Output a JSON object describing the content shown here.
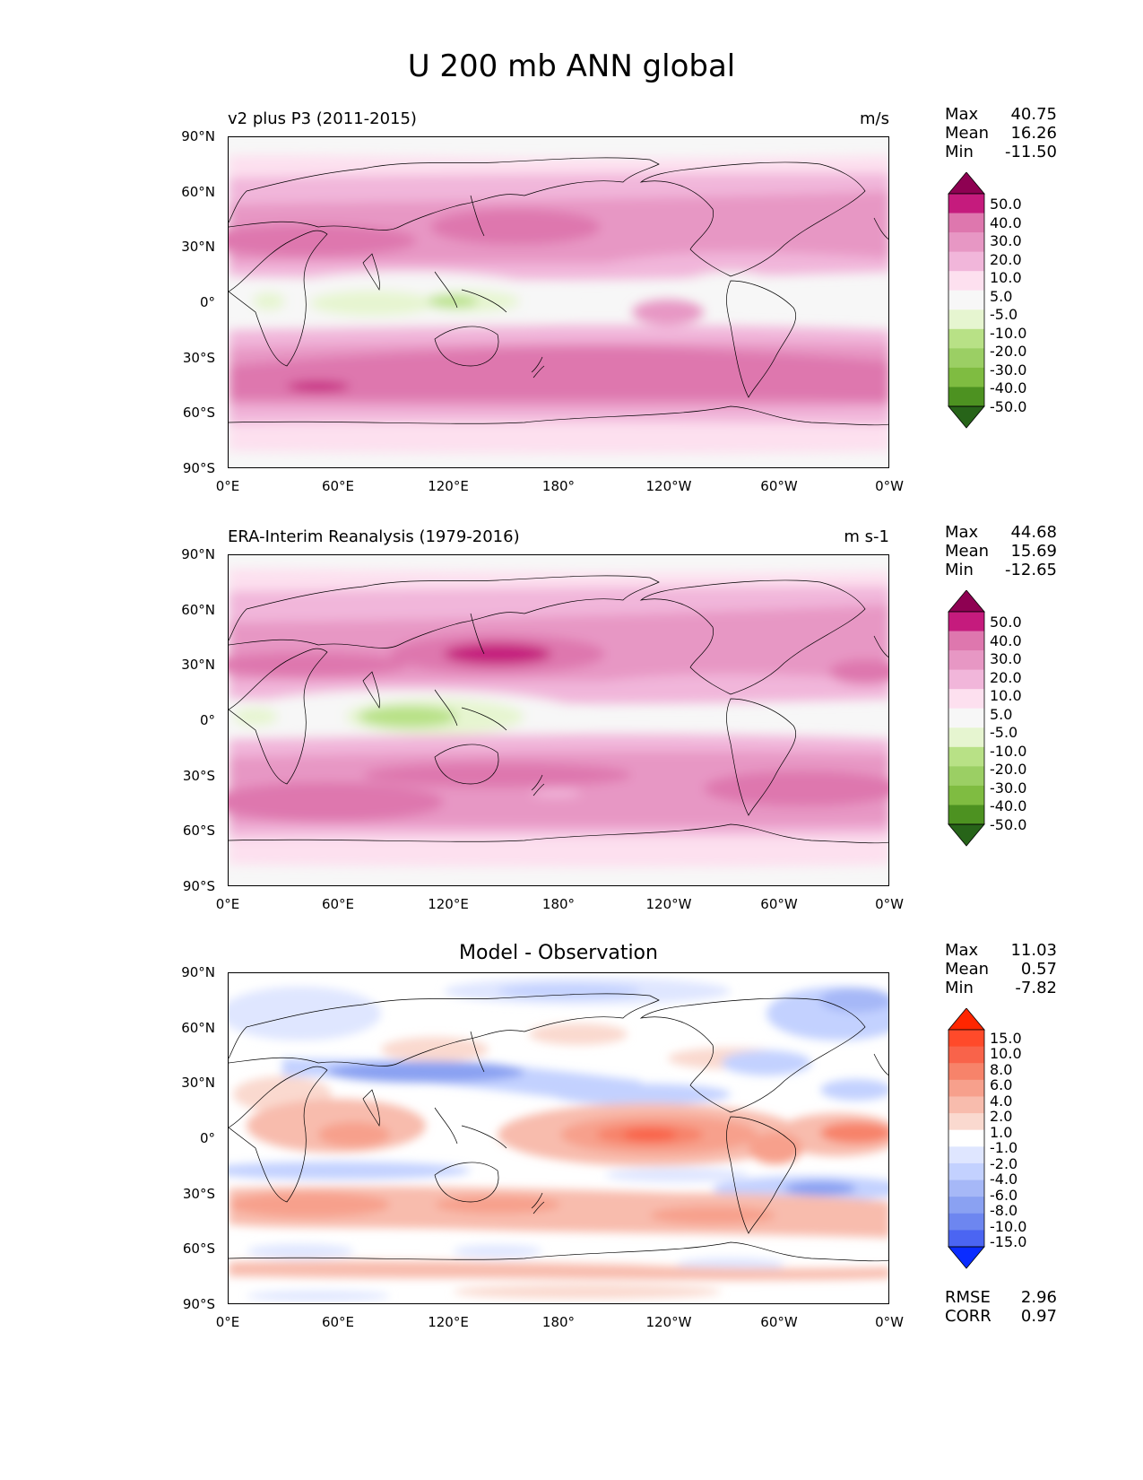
{
  "figure": {
    "title": "U 200 mb ANN global"
  },
  "axes": {
    "lat_ticks": [
      "90°N",
      "60°N",
      "30°N",
      "0°",
      "30°S",
      "60°S",
      "90°S"
    ],
    "lon_ticks": [
      "0°E",
      "60°E",
      "120°E",
      "180°",
      "120°W",
      "60°W",
      "0°W"
    ]
  },
  "panels": [
    {
      "id": "test",
      "left_title": "v2 plus P3 (2011-2015)",
      "right_title": "m/s",
      "center_title": "",
      "stats": [
        {
          "label": "Max",
          "value": "40.75"
        },
        {
          "label": "Mean",
          "value": "16.26"
        },
        {
          "label": "Min",
          "value": "-11.50"
        }
      ],
      "colorbar": {
        "levels": [
          "50.0",
          "40.0",
          "30.0",
          "20.0",
          "10.0",
          "5.0",
          "-5.0",
          "-10.0",
          "-20.0",
          "-30.0",
          "-40.0",
          "-50.0"
        ],
        "colors": [
          "#8e0152",
          "#c51b7d",
          "#de77ae",
          "#e797c4",
          "#f1b6da",
          "#fde0ef",
          "#f7f7f7",
          "#e6f5d0",
          "#b8e186",
          "#9bcf64",
          "#7fbc41",
          "#4d9221",
          "#276419"
        ]
      }
    },
    {
      "id": "reference",
      "left_title": "ERA-Interim Reanalysis (1979-2016)",
      "right_title": "m s-1",
      "center_title": "",
      "stats": [
        {
          "label": "Max",
          "value": "44.68"
        },
        {
          "label": "Mean",
          "value": "15.69"
        },
        {
          "label": "Min",
          "value": "-12.65"
        }
      ],
      "colorbar": {
        "levels": [
          "50.0",
          "40.0",
          "30.0",
          "20.0",
          "10.0",
          "5.0",
          "-5.0",
          "-10.0",
          "-20.0",
          "-30.0",
          "-40.0",
          "-50.0"
        ],
        "colors": [
          "#8e0152",
          "#c51b7d",
          "#de77ae",
          "#e797c4",
          "#f1b6da",
          "#fde0ef",
          "#f7f7f7",
          "#e6f5d0",
          "#b8e186",
          "#9bcf64",
          "#7fbc41",
          "#4d9221",
          "#276419"
        ]
      }
    },
    {
      "id": "difference",
      "left_title": "",
      "right_title": "",
      "center_title": "Model - Observation",
      "stats": [
        {
          "label": "Max",
          "value": "11.03"
        },
        {
          "label": "Mean",
          "value": "0.57"
        },
        {
          "label": "Min",
          "value": "-7.82"
        }
      ],
      "extra_stats": [
        {
          "label": "RMSE",
          "value": "2.96"
        },
        {
          "label": "CORR",
          "value": "0.97"
        }
      ],
      "colorbar": {
        "levels": [
          "15.0",
          "10.0",
          "8.0",
          "6.0",
          "4.0",
          "2.0",
          "1.0",
          "-1.0",
          "-2.0",
          "-4.0",
          "-6.0",
          "-8.0",
          "-10.0",
          "-15.0"
        ],
        "colors": [
          "#ff2600",
          "#ff4a2a",
          "#f9634a",
          "#f7836a",
          "#f7a08c",
          "#f8bcad",
          "#fad9cf",
          "#ffffff",
          "#dfe6ff",
          "#c3d1ff",
          "#a6b8f7",
          "#8aa1f2",
          "#6d86f0",
          "#4b65f2",
          "#0a2cff"
        ]
      }
    }
  ]
}
